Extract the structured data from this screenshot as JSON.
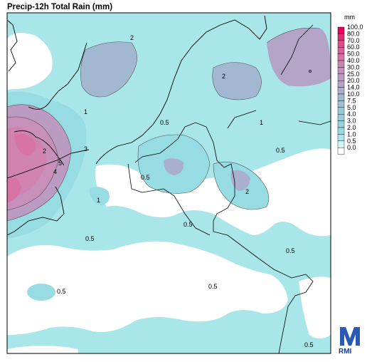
{
  "title": "Precip-12h Total Rain (mm)",
  "legend": {
    "unit": "mm",
    "classes": [
      {
        "label": "100.0",
        "color": "#e6005c"
      },
      {
        "label": "80.0",
        "color": "#e52a72"
      },
      {
        "label": "70.0",
        "color": "#e24886"
      },
      {
        "label": "60.0",
        "color": "#de5f95"
      },
      {
        "label": "50.0",
        "color": "#d874a4"
      },
      {
        "label": "40.0",
        "color": "#d083b0"
      },
      {
        "label": "30.0",
        "color": "#c690ba"
      },
      {
        "label": "25.0",
        "color": "#bc9bc2"
      },
      {
        "label": "20.0",
        "color": "#b3a4c8"
      },
      {
        "label": "14.0",
        "color": "#a9afcd"
      },
      {
        "label": "10.0",
        "color": "#a2b8d1"
      },
      {
        "label": "7.5",
        "color": "#9dc0d5"
      },
      {
        "label": "5.0",
        "color": "#99c8d8"
      },
      {
        "label": "4.0",
        "color": "#96cfdb"
      },
      {
        "label": "3.0",
        "color": "#95d5de"
      },
      {
        "label": "2.0",
        "color": "#97dce2"
      },
      {
        "label": "1.0",
        "color": "#a9e6ea"
      },
      {
        "label": "0.5",
        "color": "#d3f3f5"
      },
      {
        "label": "0.0",
        "color": "#ffffff"
      }
    ]
  },
  "contour_labels": [
    "2",
    "2",
    "0.5",
    "1",
    "2",
    "3",
    "4",
    "5",
    "0.5",
    "1",
    "0.5",
    "0.5",
    "1",
    "0.5",
    "0.5",
    "2",
    "0.5",
    "0.5",
    "0.5"
  ],
  "logo": {
    "text": "RMI"
  }
}
